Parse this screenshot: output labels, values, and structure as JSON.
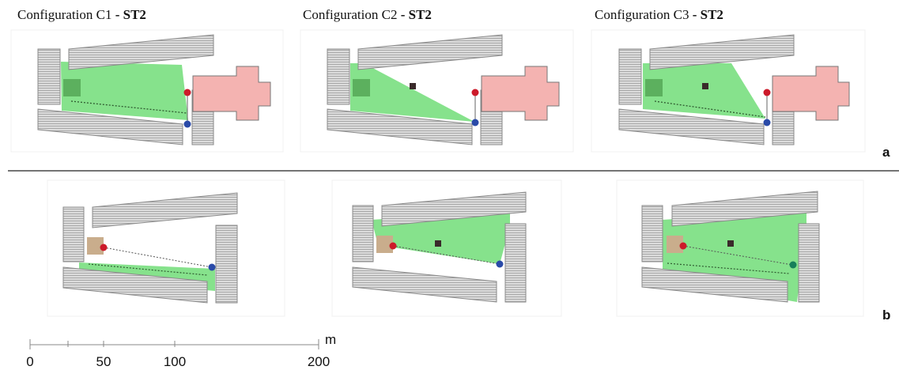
{
  "row_a": {
    "panels": [
      {
        "title_prefix": "Configuration C1",
        "title_sep": " - ",
        "title_bold": "ST2"
      },
      {
        "title_prefix": "Configuration C2",
        "title_sep": " - ",
        "title_bold": "ST2"
      },
      {
        "title_prefix": "Configuration C3",
        "title_sep": " - ",
        "title_bold": "ST2"
      }
    ],
    "label": "a"
  },
  "row_b": {
    "label": "b"
  },
  "scale_bar": {
    "unit": "m",
    "tick_labels": [
      "0",
      "50",
      "100",
      "200"
    ]
  },
  "colors": {
    "visible_zone": "#86e28c",
    "building_hatch": "#c9c9c9",
    "pink_building": "#f4b3b1",
    "tan_block": "#c9ad8c",
    "red_point": "#cc1a2a",
    "blue_point": "#2a4aa8",
    "teal_point": "#177f5a",
    "dark_marker": "#3a2a2a"
  }
}
